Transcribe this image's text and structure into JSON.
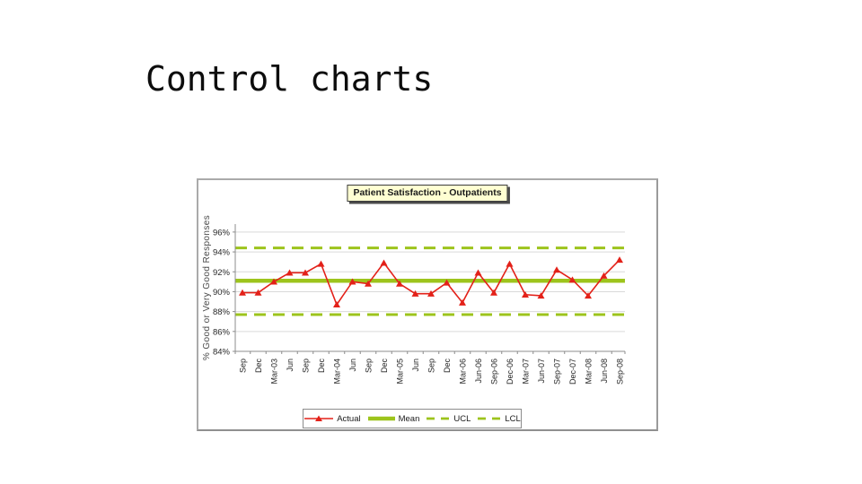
{
  "slide": {
    "title": "Control charts"
  },
  "chart": {
    "colors": {
      "actual": "#e32119",
      "control": "#9dc41c",
      "grid": "#d9d9d9",
      "axis": "#8c8c8c",
      "tick_text": "#262626",
      "axis_title_text": "#4a4a4a",
      "title_box_bg": "#ffffd2"
    }
  },
  "chart_data": {
    "type": "line",
    "title": "Patient Satisfaction - Outpatients",
    "xlabel": "",
    "ylabel": "% Good or Very Good Responses",
    "grid": true,
    "legend_position": "bottom",
    "ylim": [
      84,
      96.8
    ],
    "yticks": [
      {
        "v": 84,
        "label": "84%"
      },
      {
        "v": 86,
        "label": "86%"
      },
      {
        "v": 88,
        "label": "88%"
      },
      {
        "v": 90,
        "label": "90%"
      },
      {
        "v": 92,
        "label": "92%"
      },
      {
        "v": 94,
        "label": "94%"
      },
      {
        "v": 96,
        "label": "96%"
      }
    ],
    "categories": [
      "Sep",
      "Dec",
      "Mar-03",
      "Jun",
      "Sep",
      "Dec",
      "Mar-04",
      "Jun",
      "Sep",
      "Dec",
      "Mar-05",
      "Jun",
      "Sep",
      "Dec",
      "Mar-06",
      "Jun-06",
      "Sep-06",
      "Dec-06",
      "Mar-07",
      "Jun-07",
      "Sep-07",
      "Dec-07",
      "Mar-08",
      "Jun-08",
      "Sep-08"
    ],
    "series": [
      {
        "name": "Actual",
        "style": "line-markers",
        "values": [
          89.9,
          89.9,
          91.0,
          91.9,
          91.9,
          92.8,
          88.7,
          91.0,
          90.8,
          92.9,
          90.8,
          89.8,
          89.8,
          90.9,
          88.9,
          91.9,
          89.9,
          92.8,
          89.7,
          89.6,
          92.2,
          91.2,
          89.6,
          91.6,
          93.2
        ]
      },
      {
        "name": "Mean",
        "style": "constant-solid",
        "value": 91.1
      },
      {
        "name": "UCL",
        "style": "constant-dashed",
        "value": 94.4
      },
      {
        "name": "LCL",
        "style": "constant-dashed",
        "value": 87.7
      }
    ]
  }
}
